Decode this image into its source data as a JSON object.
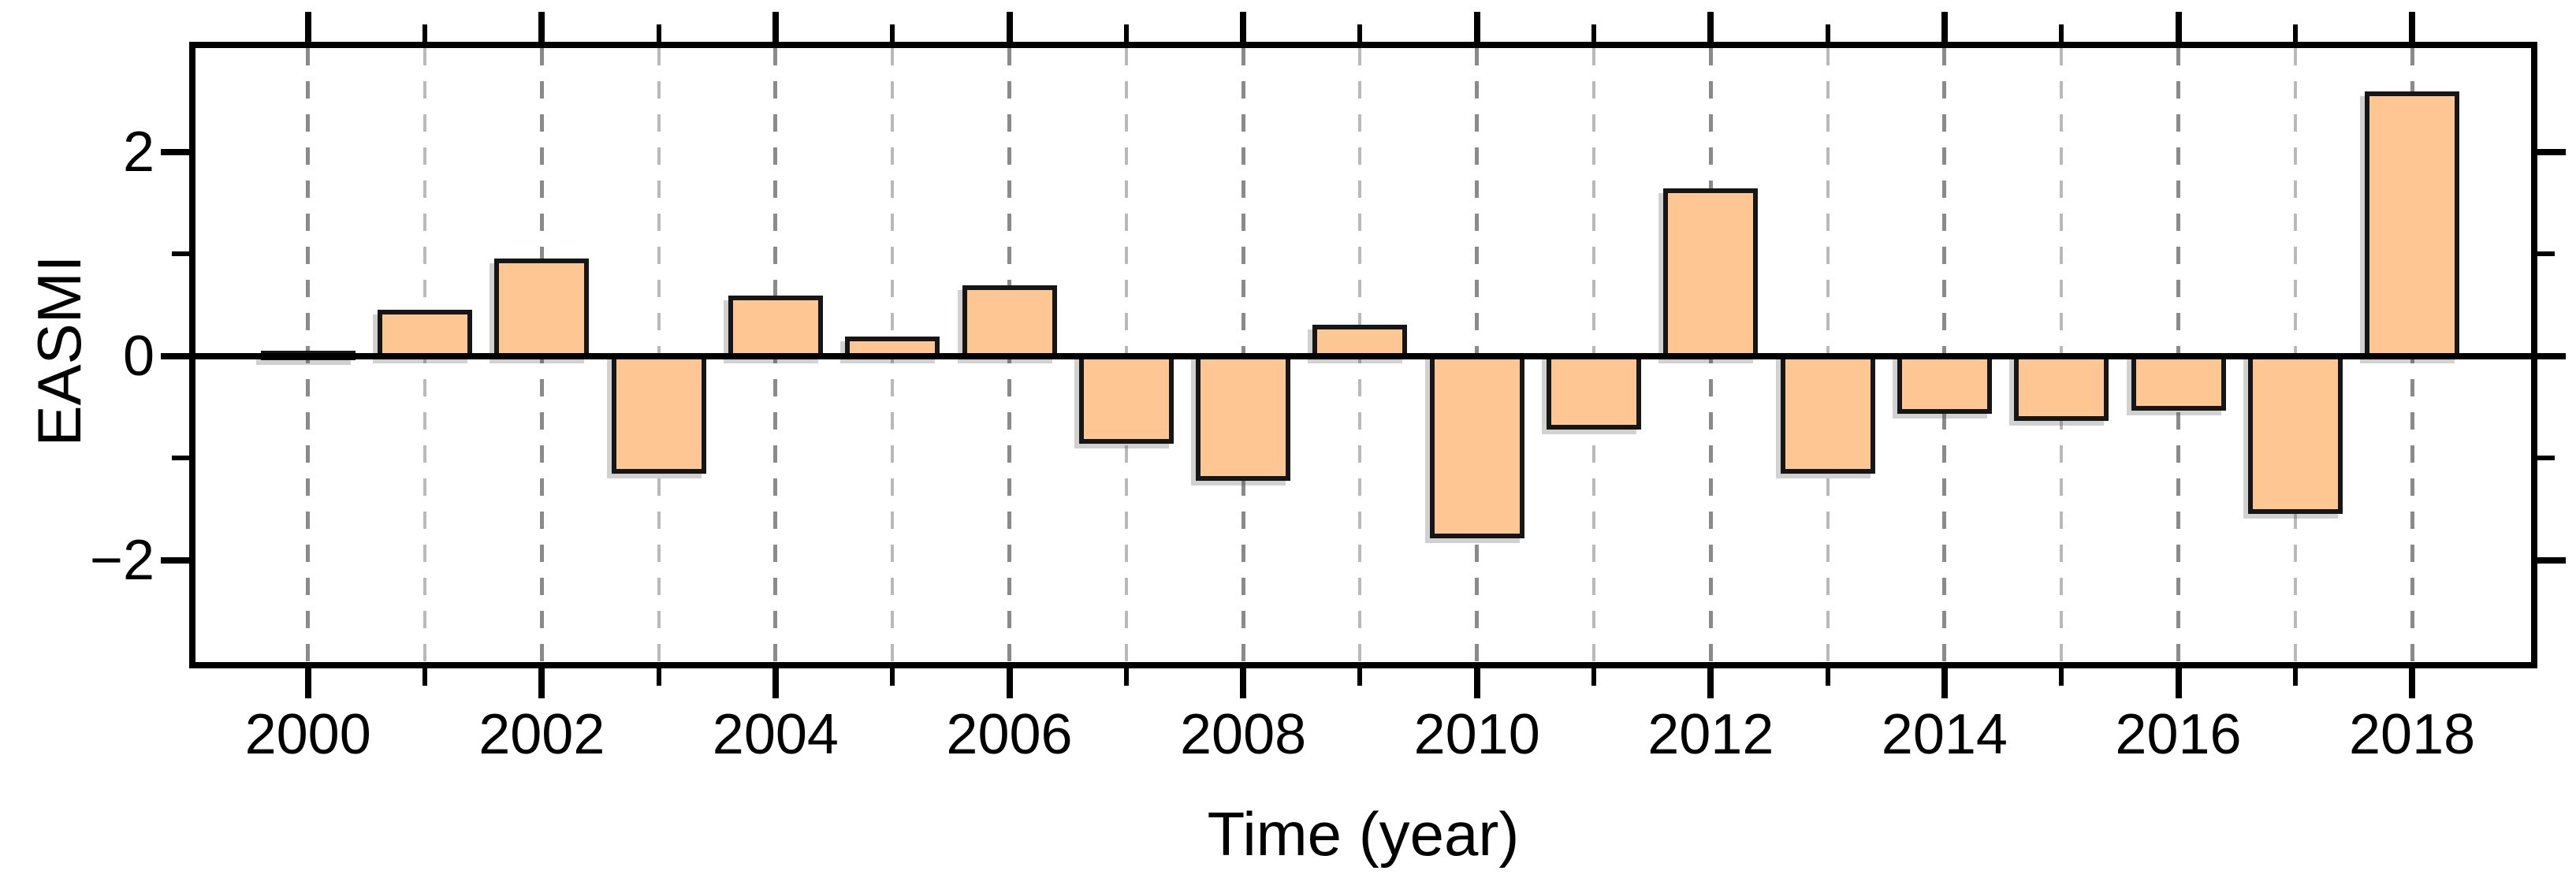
{
  "chart_data": {
    "type": "bar",
    "title": "",
    "xlabel": "Time (year)",
    "ylabel": "EASMI",
    "x": [
      2000,
      2001,
      2002,
      2003,
      2004,
      2005,
      2006,
      2007,
      2008,
      2009,
      2010,
      2011,
      2012,
      2013,
      2014,
      2015,
      2016,
      2017,
      2018
    ],
    "values": [
      0.03,
      0.43,
      0.93,
      -1.13,
      0.57,
      0.17,
      0.67,
      -0.84,
      -1.2,
      0.28,
      -1.76,
      -0.7,
      1.62,
      -1.13,
      -0.54,
      -0.61,
      -0.51,
      -1.52,
      2.57
    ],
    "xlim": [
      1999,
      2019
    ],
    "ylim": [
      -3,
      3.02
    ],
    "bar_width_years": 0.81,
    "grid": true,
    "legend_position": "none",
    "yticks_major": [
      -2,
      0,
      2
    ],
    "ytick_labels": [
      "−2",
      "0",
      "2"
    ],
    "yticks_minor": [
      -1,
      1
    ],
    "xticks_major": [
      2000,
      2002,
      2004,
      2006,
      2008,
      2010,
      2012,
      2014,
      2016,
      2018
    ],
    "xtick_labels": [
      "2000",
      "2002",
      "2004",
      "2006",
      "2008",
      "2010",
      "2012",
      "2014",
      "2016",
      "2018"
    ],
    "xticks_minor": [
      2001,
      2003,
      2005,
      2007,
      2009,
      2011,
      2013,
      2015,
      2017
    ],
    "gridline_years": [
      2000,
      2001,
      2002,
      2003,
      2004,
      2005,
      2006,
      2007,
      2008,
      2009,
      2010,
      2011,
      2012,
      2013,
      2014,
      2015,
      2016,
      2017,
      2018
    ],
    "colors": {
      "bar_fill": "#FDC693",
      "bar_border": "#161616",
      "axis": "#000000",
      "grid_major": "#8a8a8a",
      "grid_minor": "#b9b9b9",
      "background": "#ffffff"
    }
  }
}
